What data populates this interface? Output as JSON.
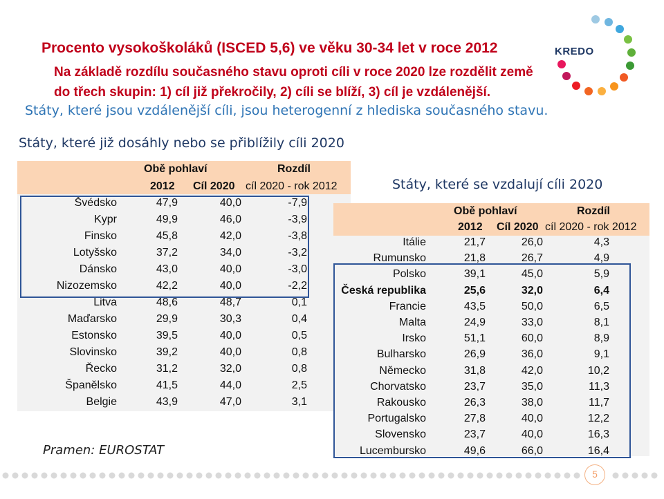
{
  "title": "Procento vysokoškoláků (ISCED 5,6) ve věku 30-34 let v roce 2012",
  "subtitle_lines": [
    "Na základě rozdílu současného stavu oproti cíli v roce 2020 lze rozdělit země",
    "do třech skupin: 1) cíl již překročily, 2) cíli se blíží, 3) cíl je vzdálenější."
  ],
  "note": "Státy, které jsou vzdálenější cíli, jsou heterogenní z hlediska současného stavu.",
  "logo_text": "KREDO",
  "left_section_title": "Státy, které již dosáhly nebo se přiblížily cíli 2020",
  "right_section_title": "Státy, které se vzdalují cíli 2020",
  "source": "Pramen: EUROSTAT",
  "page_number": "5",
  "colors": {
    "title": "#c0001a",
    "note": "#2e74b5",
    "header_bg": "#fbd5b5",
    "frame": "#2f5597",
    "table_bg": "#f2f2f2"
  },
  "table_headers": {
    "group": "Obě pohlaví",
    "diff": "Rozdíl",
    "year": "2012",
    "goal": "Cíl 2020",
    "diff_formula": "cíl 2020 - rok 2012"
  },
  "left_table": [
    {
      "country": "Švédsko",
      "v2012": "47,9",
      "goal": "40,0",
      "diff": "-7,9"
    },
    {
      "country": "Kypr",
      "v2012": "49,9",
      "goal": "46,0",
      "diff": "-3,9"
    },
    {
      "country": "Finsko",
      "v2012": "45,8",
      "goal": "42,0",
      "diff": "-3,8"
    },
    {
      "country": "Lotyšsko",
      "v2012": "37,2",
      "goal": "34,0",
      "diff": "-3,2"
    },
    {
      "country": "Dánsko",
      "v2012": "43,0",
      "goal": "40,0",
      "diff": "-3,0"
    },
    {
      "country": "Nizozemsko",
      "v2012": "42,2",
      "goal": "40,0",
      "diff": "-2,2"
    },
    {
      "country": "Litva",
      "v2012": "48,6",
      "goal": "48,7",
      "diff": "0,1"
    },
    {
      "country": "Maďarsko",
      "v2012": "29,9",
      "goal": "30,3",
      "diff": "0,4"
    },
    {
      "country": "Estonsko",
      "v2012": "39,5",
      "goal": "40,0",
      "diff": "0,5"
    },
    {
      "country": "Slovinsko",
      "v2012": "39,2",
      "goal": "40,0",
      "diff": "0,8"
    },
    {
      "country": "Řecko",
      "v2012": "31,2",
      "goal": "32,0",
      "diff": "0,8"
    },
    {
      "country": "Španělsko",
      "v2012": "41,5",
      "goal": "44,0",
      "diff": "2,5"
    },
    {
      "country": "Belgie",
      "v2012": "43,9",
      "goal": "47,0",
      "diff": "3,1"
    }
  ],
  "right_table": [
    {
      "country": "Itálie",
      "v2012": "21,7",
      "goal": "26,0",
      "diff": "4,3",
      "bold": false
    },
    {
      "country": "Rumunsko",
      "v2012": "21,8",
      "goal": "26,7",
      "diff": "4,9",
      "bold": false
    },
    {
      "country": "Polsko",
      "v2012": "39,1",
      "goal": "45,0",
      "diff": "5,9",
      "bold": false
    },
    {
      "country": "Česká republika",
      "v2012": "25,6",
      "goal": "32,0",
      "diff": "6,4",
      "bold": true
    },
    {
      "country": "Francie",
      "v2012": "43,5",
      "goal": "50,0",
      "diff": "6,5",
      "bold": false
    },
    {
      "country": "Malta",
      "v2012": "24,9",
      "goal": "33,0",
      "diff": "8,1",
      "bold": false
    },
    {
      "country": "Irsko",
      "v2012": "51,1",
      "goal": "60,0",
      "diff": "8,9",
      "bold": false
    },
    {
      "country": "Bulharsko",
      "v2012": "26,9",
      "goal": "36,0",
      "diff": "9,1",
      "bold": false
    },
    {
      "country": "Německo",
      "v2012": "31,8",
      "goal": "42,0",
      "diff": "10,2",
      "bold": false
    },
    {
      "country": "Chorvatsko",
      "v2012": "23,7",
      "goal": "35,0",
      "diff": "11,3",
      "bold": false
    },
    {
      "country": "Rakousko",
      "v2012": "26,3",
      "goal": "38,0",
      "diff": "11,7",
      "bold": false
    },
    {
      "country": "Portugalsko",
      "v2012": "27,8",
      "goal": "40,0",
      "diff": "12,2",
      "bold": false
    },
    {
      "country": "Slovensko",
      "v2012": "23,7",
      "goal": "40,0",
      "diff": "16,3",
      "bold": false
    },
    {
      "country": "Lucembursko",
      "v2012": "49,6",
      "goal": "66,0",
      "diff": "16,4",
      "bold": false
    }
  ]
}
